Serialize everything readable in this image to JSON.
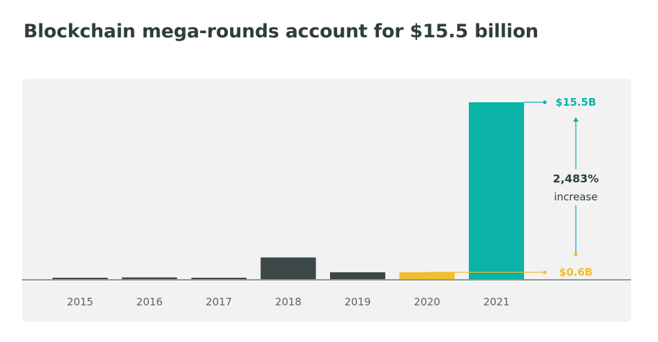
{
  "chart_data": {
    "type": "bar",
    "title": "Blockchain mega-rounds account for $15.5 billion",
    "categories": [
      "2015",
      "2016",
      "2017",
      "2018",
      "2019",
      "2020",
      "2021"
    ],
    "values": [
      0.1,
      0.15,
      0.12,
      1.9,
      0.6,
      0.6,
      15.5
    ],
    "ylim": [
      0,
      15.5
    ],
    "xlabel": "",
    "ylabel": "",
    "grid": false,
    "bar_colors": [
      "#3c4747",
      "#3c4747",
      "#3c4747",
      "#3c4747",
      "#3c4747",
      "#f2bd2e",
      "#0ab3a6"
    ],
    "annotations": {
      "top_value": "$15.5B",
      "base_value": "$0.6B",
      "change_pct": "2,483%",
      "change_word": "increase"
    },
    "colors": {
      "teal": "#0ab3a6",
      "yellow": "#f2bd2e",
      "dark": "#3c4747",
      "text": "#2f3d3d",
      "axis_label": "#5a6363"
    }
  }
}
